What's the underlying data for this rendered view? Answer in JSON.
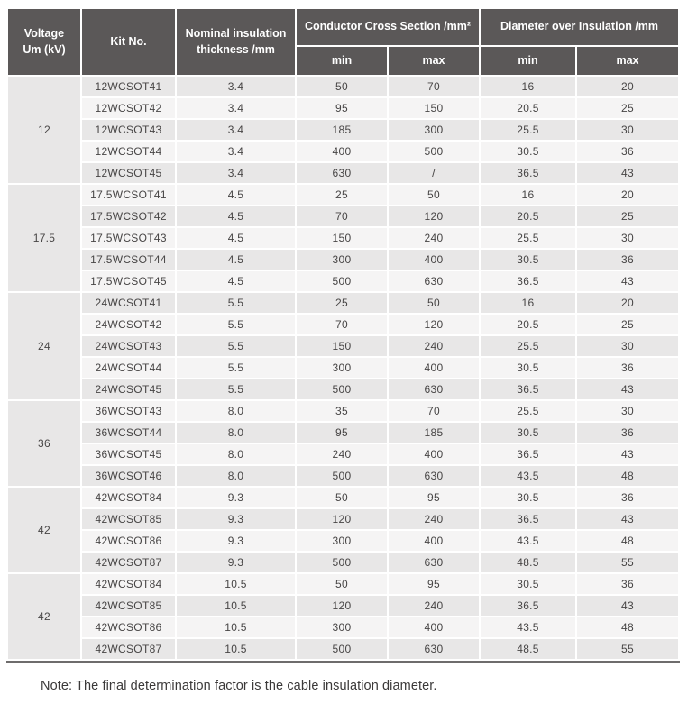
{
  "colors": {
    "header_bg": "#5b5858",
    "header_text": "#ffffff",
    "stripe_dark": "#e8e7e7",
    "stripe_light": "#f5f4f4",
    "body_text": "#474545",
    "bottom_border": "#6e6c6c",
    "note_text": "#3b3939",
    "page_bg": "#ffffff"
  },
  "table": {
    "header": {
      "voltage_lines": [
        "Voltage",
        "Um (kV)"
      ],
      "kit": "Kit No.",
      "nominal_lines": [
        "Nominal insulation",
        "thickness /mm"
      ],
      "conductor_group": "Conductor Cross Section /mm²",
      "diameter_group": "Diameter over Insulation /mm",
      "sub": [
        "min",
        "max",
        "min",
        "max"
      ]
    },
    "groups": [
      {
        "voltage": "12",
        "rows": [
          {
            "kit": "12WCSOT41",
            "thickness": "3.4",
            "cc_min": "50",
            "cc_max": "70",
            "di_min": "16",
            "di_max": "20"
          },
          {
            "kit": "12WCSOT42",
            "thickness": "3.4",
            "cc_min": "95",
            "cc_max": "150",
            "di_min": "20.5",
            "di_max": "25"
          },
          {
            "kit": "12WCSOT43",
            "thickness": "3.4",
            "cc_min": "185",
            "cc_max": "300",
            "di_min": "25.5",
            "di_max": "30"
          },
          {
            "kit": "12WCSOT44",
            "thickness": "3.4",
            "cc_min": "400",
            "cc_max": "500",
            "di_min": "30.5",
            "di_max": "36"
          },
          {
            "kit": "12WCSOT45",
            "thickness": "3.4",
            "cc_min": "630",
            "cc_max": "/",
            "di_min": "36.5",
            "di_max": "43"
          }
        ]
      },
      {
        "voltage": "17.5",
        "rows": [
          {
            "kit": "17.5WCSOT41",
            "thickness": "4.5",
            "cc_min": "25",
            "cc_max": "50",
            "di_min": "16",
            "di_max": "20"
          },
          {
            "kit": "17.5WCSOT42",
            "thickness": "4.5",
            "cc_min": "70",
            "cc_max": "120",
            "di_min": "20.5",
            "di_max": "25"
          },
          {
            "kit": "17.5WCSOT43",
            "thickness": "4.5",
            "cc_min": "150",
            "cc_max": "240",
            "di_min": "25.5",
            "di_max": "30"
          },
          {
            "kit": "17.5WCSOT44",
            "thickness": "4.5",
            "cc_min": "300",
            "cc_max": "400",
            "di_min": "30.5",
            "di_max": "36"
          },
          {
            "kit": "17.5WCSOT45",
            "thickness": "4.5",
            "cc_min": "500",
            "cc_max": "630",
            "di_min": "36.5",
            "di_max": "43"
          }
        ]
      },
      {
        "voltage": "24",
        "rows": [
          {
            "kit": "24WCSOT41",
            "thickness": "5.5",
            "cc_min": "25",
            "cc_max": "50",
            "di_min": "16",
            "di_max": "20"
          },
          {
            "kit": "24WCSOT42",
            "thickness": "5.5",
            "cc_min": "70",
            "cc_max": "120",
            "di_min": "20.5",
            "di_max": "25"
          },
          {
            "kit": "24WCSOT43",
            "thickness": "5.5",
            "cc_min": "150",
            "cc_max": "240",
            "di_min": "25.5",
            "di_max": "30"
          },
          {
            "kit": "24WCSOT44",
            "thickness": "5.5",
            "cc_min": "300",
            "cc_max": "400",
            "di_min": "30.5",
            "di_max": "36"
          },
          {
            "kit": "24WCSOT45",
            "thickness": "5.5",
            "cc_min": "500",
            "cc_max": "630",
            "di_min": "36.5",
            "di_max": "43"
          }
        ]
      },
      {
        "voltage": "36",
        "rows": [
          {
            "kit": "36WCSOT43",
            "thickness": "8.0",
            "cc_min": "35",
            "cc_max": "70",
            "di_min": "25.5",
            "di_max": "30"
          },
          {
            "kit": "36WCSOT44",
            "thickness": "8.0",
            "cc_min": "95",
            "cc_max": "185",
            "di_min": "30.5",
            "di_max": "36"
          },
          {
            "kit": "36WCSOT45",
            "thickness": "8.0",
            "cc_min": "240",
            "cc_max": "400",
            "di_min": "36.5",
            "di_max": "43"
          },
          {
            "kit": "36WCSOT46",
            "thickness": "8.0",
            "cc_min": "500",
            "cc_max": "630",
            "di_min": "43.5",
            "di_max": "48"
          }
        ]
      },
      {
        "voltage": "42",
        "rows": [
          {
            "kit": "42WCSOT84",
            "thickness": "9.3",
            "cc_min": "50",
            "cc_max": "95",
            "di_min": "30.5",
            "di_max": "36"
          },
          {
            "kit": "42WCSOT85",
            "thickness": "9.3",
            "cc_min": "120",
            "cc_max": "240",
            "di_min": "36.5",
            "di_max": "43"
          },
          {
            "kit": "42WCSOT86",
            "thickness": "9.3",
            "cc_min": "300",
            "cc_max": "400",
            "di_min": "43.5",
            "di_max": "48"
          },
          {
            "kit": "42WCSOT87",
            "thickness": "9.3",
            "cc_min": "500",
            "cc_max": "630",
            "di_min": "48.5",
            "di_max": "55"
          }
        ]
      },
      {
        "voltage": "42",
        "rows": [
          {
            "kit": "42WCSOT84",
            "thickness": "10.5",
            "cc_min": "50",
            "cc_max": "95",
            "di_min": "30.5",
            "di_max": "36"
          },
          {
            "kit": "42WCSOT85",
            "thickness": "10.5",
            "cc_min": "120",
            "cc_max": "240",
            "di_min": "36.5",
            "di_max": "43"
          },
          {
            "kit": "42WCSOT86",
            "thickness": "10.5",
            "cc_min": "300",
            "cc_max": "400",
            "di_min": "43.5",
            "di_max": "48"
          },
          {
            "kit": "42WCSOT87",
            "thickness": "10.5",
            "cc_min": "500",
            "cc_max": "630",
            "di_min": "48.5",
            "di_max": "55"
          }
        ]
      }
    ]
  },
  "note": "Note: The final determination factor is the cable insulation diameter."
}
